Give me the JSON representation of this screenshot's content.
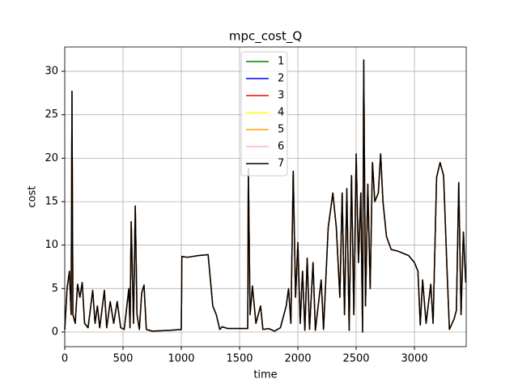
{
  "chart_data": {
    "type": "line",
    "title": "mpc_cost_Q",
    "xlabel": "time",
    "ylabel": "cost",
    "x": [
      0,
      20,
      40,
      55,
      62,
      70,
      90,
      110,
      130,
      150,
      170,
      200,
      240,
      260,
      280,
      300,
      340,
      360,
      390,
      420,
      450,
      480,
      510,
      550,
      560,
      570,
      590,
      605,
      620,
      640,
      660,
      680,
      700,
      750,
      900,
      1000,
      1005,
      1050,
      1150,
      1230,
      1270,
      1300,
      1330,
      1350,
      1400,
      1500,
      1570,
      1575,
      1590,
      1610,
      1640,
      1680,
      1700,
      1750,
      1800,
      1850,
      1900,
      1920,
      1940,
      1960,
      1980,
      2000,
      2020,
      2040,
      2060,
      2080,
      2100,
      2130,
      2150,
      2200,
      2220,
      2260,
      2300,
      2330,
      2360,
      2380,
      2400,
      2420,
      2440,
      2460,
      2480,
      2500,
      2520,
      2540,
      2555,
      2565,
      2580,
      2600,
      2620,
      2640,
      2660,
      2690,
      2710,
      2730,
      2760,
      2800,
      2860,
      2950,
      3000,
      3030,
      3050,
      3070,
      3100,
      3140,
      3160,
      3190,
      3220,
      3250,
      3280,
      3300,
      3340,
      3360,
      3380,
      3400,
      3420,
      3440
    ],
    "series": [
      {
        "name": "1",
        "color": "#008000",
        "values": [
          0.3,
          5,
          7,
          2,
          27.7,
          2,
          1,
          5.5,
          4,
          5.7,
          1,
          0.5,
          4.8,
          1,
          3,
          0.5,
          4.8,
          0.5,
          3.5,
          1,
          3.5,
          0.5,
          0.3,
          5,
          0.5,
          12.7,
          1,
          14.5,
          2,
          0.3,
          4.5,
          5.4,
          0.3,
          0.1,
          0.2,
          0.3,
          8.7,
          8.6,
          8.8,
          8.9,
          3,
          2,
          0.3,
          0.6,
          0.4,
          0.4,
          0.4,
          18.8,
          2,
          5.3,
          1,
          3,
          0.3,
          0.4,
          0.1,
          0.5,
          3,
          5,
          1,
          18.5,
          4,
          10.3,
          1,
          7,
          0.2,
          8.5,
          0.3,
          8,
          0.2,
          6,
          0.3,
          12,
          16,
          12,
          4,
          16,
          2,
          16.5,
          0.2,
          18,
          2,
          20.5,
          8,
          16,
          0,
          31.3,
          3,
          17,
          5,
          19.5,
          15,
          16,
          20.5,
          15,
          11,
          9.5,
          9.3,
          8.8,
          8,
          7,
          0.8,
          6,
          1,
          5.5,
          1,
          17.8,
          19.5,
          18,
          7,
          0.3,
          1.5,
          2.5,
          17.2,
          2,
          11.5,
          5.7
        ]
      },
      {
        "name": "2",
        "color": "#0000ff",
        "values": [
          0.3,
          5,
          7,
          2,
          27.7,
          2,
          1,
          5.5,
          4,
          5.7,
          1,
          0.5,
          4.8,
          1,
          3,
          0.5,
          4.8,
          0.5,
          3.5,
          1,
          3.5,
          0.5,
          0.3,
          5,
          0.5,
          12.7,
          1,
          14.5,
          2,
          0.3,
          4.5,
          5.4,
          0.3,
          0.1,
          0.2,
          0.3,
          8.7,
          8.6,
          8.8,
          8.9,
          3,
          2,
          0.3,
          0.6,
          0.4,
          0.4,
          0.4,
          18.8,
          2,
          5.3,
          1,
          3,
          0.3,
          0.4,
          0.1,
          0.5,
          3,
          5,
          1,
          18.5,
          4,
          10.3,
          1,
          7,
          0.2,
          8.5,
          0.3,
          8,
          0.2,
          6,
          0.3,
          12,
          16,
          12,
          4,
          16,
          2,
          16.5,
          0.2,
          18,
          2,
          20.5,
          8,
          16,
          0,
          31.3,
          3,
          17,
          5,
          19.5,
          15,
          16,
          20.5,
          15,
          11,
          9.5,
          9.3,
          8.8,
          8,
          7,
          0.8,
          6,
          1,
          5.5,
          1,
          17.8,
          19.5,
          18,
          7,
          0.3,
          1.5,
          2.5,
          17.2,
          2,
          11.5,
          5.7
        ]
      },
      {
        "name": "3",
        "color": "#ff0000",
        "values": [
          0.3,
          5,
          7,
          2,
          27.7,
          2,
          1,
          5.5,
          4,
          5.7,
          1,
          0.5,
          4.8,
          1,
          3,
          0.5,
          4.8,
          0.5,
          3.5,
          1,
          3.5,
          0.5,
          0.3,
          5,
          0.5,
          12.7,
          1,
          14.5,
          2,
          0.3,
          4.5,
          5.4,
          0.3,
          0.1,
          0.2,
          0.3,
          8.7,
          8.6,
          8.8,
          8.9,
          3,
          2,
          0.3,
          0.6,
          0.4,
          0.4,
          0.4,
          18.8,
          2,
          5.3,
          1,
          3,
          0.3,
          0.4,
          0.1,
          0.5,
          3,
          5,
          1,
          18.5,
          4,
          10.3,
          1,
          7,
          0.2,
          8.5,
          0.3,
          8,
          0.2,
          6,
          0.3,
          12,
          16,
          12,
          4,
          16,
          2,
          16.5,
          0.2,
          18,
          2,
          20.5,
          8,
          16,
          0,
          31.3,
          3,
          17,
          5,
          19.5,
          15,
          16,
          20.5,
          15,
          11,
          9.5,
          9.3,
          8.8,
          8,
          7,
          0.8,
          6,
          1,
          5.5,
          1,
          17.8,
          19.5,
          18,
          7,
          0.3,
          1.5,
          2.5,
          17.2,
          2,
          11.5,
          5.7
        ]
      },
      {
        "name": "4",
        "color": "#ffff00",
        "values": [
          0.3,
          5,
          7,
          2,
          27.7,
          2,
          1,
          5.5,
          4,
          5.7,
          1,
          0.5,
          4.8,
          1,
          3,
          0.5,
          4.8,
          0.5,
          3.5,
          1,
          3.5,
          0.5,
          0.3,
          5,
          0.5,
          12.7,
          1,
          14.5,
          2,
          0.3,
          4.5,
          5.4,
          0.3,
          0.1,
          0.2,
          0.3,
          8.7,
          8.6,
          8.8,
          8.9,
          3,
          2,
          0.3,
          0.6,
          0.4,
          0.4,
          0.4,
          18.8,
          2,
          5.3,
          1,
          3,
          0.3,
          0.4,
          0.1,
          0.5,
          3,
          5,
          1,
          18.5,
          4,
          10.3,
          1,
          7,
          0.2,
          8.5,
          0.3,
          8,
          0.2,
          6,
          0.3,
          12,
          16,
          12,
          4,
          16,
          2,
          16.5,
          0.2,
          18,
          2,
          20.5,
          8,
          16,
          0,
          31.3,
          3,
          17,
          5,
          19.5,
          15,
          16,
          20.5,
          15,
          11,
          9.5,
          9.3,
          8.8,
          8,
          7,
          0.8,
          6,
          1,
          5.5,
          1,
          17.8,
          19.5,
          18,
          7,
          0.3,
          1.5,
          2.5,
          17.2,
          2,
          11.5,
          5.7
        ]
      },
      {
        "name": "5",
        "color": "#ffa500",
        "values": [
          0.3,
          5,
          7,
          2,
          27.7,
          2,
          1,
          5.5,
          4,
          5.7,
          1,
          0.5,
          4.8,
          1,
          3,
          0.5,
          4.8,
          0.5,
          3.5,
          1,
          3.5,
          0.5,
          0.3,
          5,
          0.5,
          12.7,
          1,
          14.5,
          2,
          0.3,
          4.5,
          5.4,
          0.3,
          0.1,
          0.2,
          0.3,
          8.7,
          8.6,
          8.8,
          8.9,
          3,
          2,
          0.3,
          0.6,
          0.4,
          0.4,
          0.4,
          18.8,
          2,
          5.3,
          1,
          3,
          0.3,
          0.4,
          0.1,
          0.5,
          3,
          5,
          1,
          18.5,
          4,
          10.3,
          1,
          7,
          0.2,
          8.5,
          0.3,
          8,
          0.2,
          6,
          0.3,
          12,
          16,
          12,
          4,
          16,
          2,
          16.5,
          0.2,
          18,
          2,
          20.5,
          8,
          16,
          0,
          31.3,
          3,
          17,
          5,
          19.5,
          15,
          16,
          20.5,
          15,
          11,
          9.5,
          9.3,
          8.8,
          8,
          7,
          0.8,
          6,
          1,
          5.5,
          1,
          17.8,
          19.5,
          18,
          7,
          0.3,
          1.5,
          2.5,
          17.2,
          2,
          11.5,
          5.7
        ]
      },
      {
        "name": "6",
        "color": "#ffb6c1",
        "values": [
          0.3,
          5,
          7,
          2,
          27.7,
          2,
          1,
          5.5,
          4,
          5.7,
          1,
          0.5,
          4.8,
          1,
          3,
          0.5,
          4.8,
          0.5,
          3.5,
          1,
          3.5,
          0.5,
          0.3,
          5,
          0.5,
          12.7,
          1,
          14.5,
          2,
          0.3,
          4.5,
          5.4,
          0.3,
          0.1,
          0.2,
          0.3,
          8.7,
          8.6,
          8.8,
          8.9,
          3,
          2,
          0.3,
          0.6,
          0.4,
          0.4,
          0.4,
          18.8,
          2,
          5.3,
          1,
          3,
          0.3,
          0.4,
          0.1,
          0.5,
          3,
          5,
          1,
          18.5,
          4,
          10.3,
          1,
          7,
          0.2,
          8.5,
          0.3,
          8,
          0.2,
          6,
          0.3,
          12,
          16,
          12,
          4,
          16,
          2,
          16.5,
          0.2,
          18,
          2,
          20.5,
          8,
          16,
          0,
          31.3,
          3,
          17,
          5,
          19.5,
          15,
          16,
          20.5,
          15,
          11,
          9.5,
          9.3,
          8.8,
          8,
          7,
          0.8,
          6,
          1,
          5.5,
          1,
          17.8,
          19.5,
          18,
          7,
          0.3,
          1.5,
          2.5,
          17.2,
          2,
          11.5,
          5.7
        ]
      },
      {
        "name": "7",
        "color": "#000000",
        "values": [
          0.3,
          5,
          7,
          2,
          27.7,
          2,
          1,
          5.5,
          4,
          5.7,
          1,
          0.5,
          4.8,
          1,
          3,
          0.5,
          4.8,
          0.5,
          3.5,
          1,
          3.5,
          0.5,
          0.3,
          5,
          0.5,
          12.7,
          1,
          14.5,
          2,
          0.3,
          4.5,
          5.4,
          0.3,
          0.1,
          0.2,
          0.3,
          8.7,
          8.6,
          8.8,
          8.9,
          3,
          2,
          0.3,
          0.6,
          0.4,
          0.4,
          0.4,
          18.8,
          2,
          5.3,
          1,
          3,
          0.3,
          0.4,
          0.1,
          0.5,
          3,
          5,
          1,
          18.5,
          4,
          10.3,
          1,
          7,
          0.2,
          8.5,
          0.3,
          8,
          0.2,
          6,
          0.3,
          12,
          16,
          12,
          4,
          16,
          2,
          16.5,
          0.2,
          18,
          2,
          20.5,
          8,
          16,
          0,
          31.3,
          3,
          17,
          5,
          19.5,
          15,
          16,
          20.5,
          15,
          11,
          9.5,
          9.3,
          8.8,
          8,
          7,
          0.8,
          6,
          1,
          5.5,
          1,
          17.8,
          19.5,
          18,
          7,
          0.3,
          1.5,
          2.5,
          17.2,
          2,
          11.5,
          5.7
        ]
      }
    ],
    "xlim": [
      0,
      3444
    ],
    "ylim": [
      -1.68,
      32.8
    ],
    "xticks": [
      0,
      500,
      1000,
      1500,
      2000,
      2500,
      3000
    ],
    "yticks": [
      0,
      5,
      10,
      15,
      20,
      25,
      30
    ],
    "grid": true,
    "legend": "upper center"
  }
}
